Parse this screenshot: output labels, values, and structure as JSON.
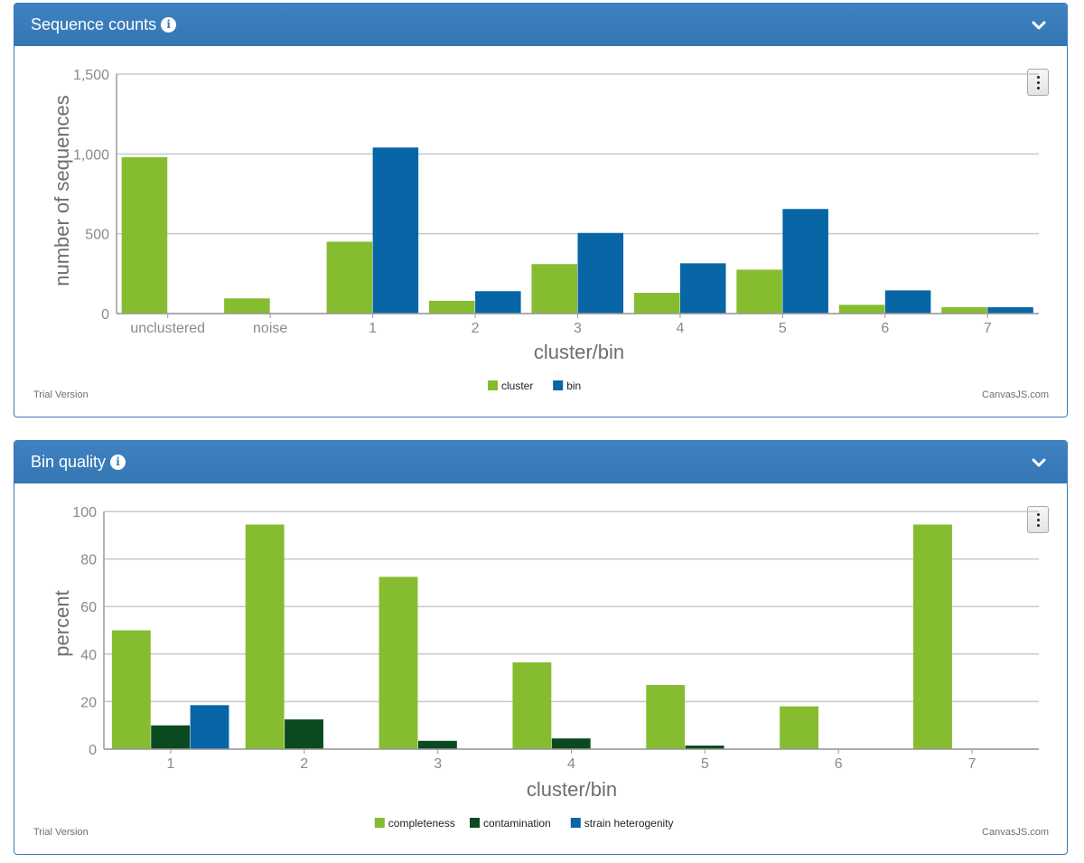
{
  "panels": [
    {
      "title": "Sequence counts",
      "trial_label": "Trial Version",
      "credit_label": "CanvasJS.com",
      "icons": {
        "info": "info-icon",
        "collapse": "chevron-down-icon",
        "menu": "vertical-dots-icon"
      }
    },
    {
      "title": "Bin quality",
      "trial_label": "Trial Version",
      "credit_label": "CanvasJS.com",
      "icons": {
        "info": "info-icon",
        "collapse": "chevron-down-icon",
        "menu": "vertical-dots-icon"
      }
    }
  ],
  "colors": {
    "header": "#3a7ab8",
    "cluster": "#86bc2f",
    "bin": "#0865a6",
    "completeness": "#86bc2f",
    "contamination": "#0b4a20",
    "strain_heterogenity": "#0865a6"
  },
  "chart_data": [
    {
      "type": "bar",
      "xlabel": "cluster/bin",
      "ylabel": "number of sequences",
      "ylim": [
        0,
        1500
      ],
      "yticks": [
        0,
        500,
        1000,
        1500
      ],
      "ytick_labels": [
        "0",
        "500",
        "1,000",
        "1,500"
      ],
      "grid": true,
      "legend_position": "bottom-center",
      "categories": [
        "unclustered",
        "noise",
        "1",
        "2",
        "3",
        "4",
        "5",
        "6",
        "7"
      ],
      "series": [
        {
          "name": "cluster",
          "color": "#86bc2f",
          "values": [
            980,
            95,
            450,
            80,
            310,
            130,
            275,
            55,
            40
          ]
        },
        {
          "name": "bin",
          "color": "#0865a6",
          "values": [
            null,
            null,
            1040,
            140,
            505,
            315,
            655,
            145,
            40
          ]
        }
      ]
    },
    {
      "type": "bar",
      "xlabel": "cluster/bin",
      "ylabel": "percent",
      "ylim": [
        0,
        100
      ],
      "yticks": [
        0,
        20,
        40,
        60,
        80,
        100
      ],
      "ytick_labels": [
        "0",
        "20",
        "40",
        "60",
        "80",
        "100"
      ],
      "grid": true,
      "legend_position": "bottom-center",
      "categories": [
        "1",
        "2",
        "3",
        "4",
        "5",
        "6",
        "7"
      ],
      "series": [
        {
          "name": "completeness",
          "color": "#86bc2f",
          "values": [
            50,
            94.5,
            72.5,
            36.5,
            27,
            18,
            94.5
          ]
        },
        {
          "name": "contamination",
          "color": "#0b4a20",
          "values": [
            10,
            12.5,
            3.5,
            4.5,
            1.5,
            0,
            0
          ]
        },
        {
          "name": "strain heterogenity",
          "color": "#0865a6",
          "values": [
            18.5,
            0,
            0,
            0,
            0,
            0,
            0
          ]
        }
      ]
    }
  ]
}
